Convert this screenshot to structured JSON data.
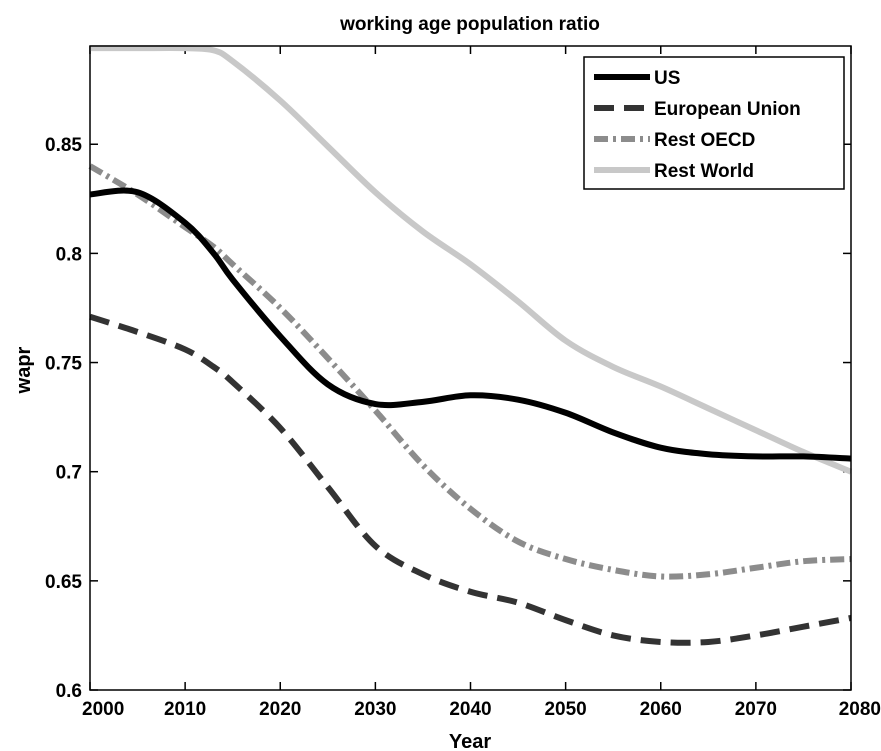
{
  "chart_data": {
    "type": "line",
    "title": "working age population ratio",
    "xlabel": "Year",
    "ylabel": "wapr",
    "xlim": [
      2000,
      2080
    ],
    "ylim": [
      0.6,
      0.895
    ],
    "xticks": [
      2000,
      2010,
      2020,
      2030,
      2040,
      2050,
      2060,
      2070,
      2080
    ],
    "yticks": [
      0.6,
      0.65,
      0.7,
      0.75,
      0.8,
      0.85
    ],
    "ytick_labels": [
      "0.6",
      "0.65",
      "0.7",
      "0.75",
      "0.8",
      "0.85"
    ],
    "grid": false,
    "legend_position": "top-right",
    "x": [
      2000,
      2005,
      2010,
      2013,
      2015,
      2020,
      2025,
      2030,
      2035,
      2040,
      2045,
      2050,
      2055,
      2060,
      2065,
      2070,
      2075,
      2080
    ],
    "series": [
      {
        "name": "US",
        "color": "#000000",
        "dash": "solid",
        "values": [
          0.827,
          0.828,
          0.814,
          0.8,
          0.788,
          0.762,
          0.74,
          0.731,
          0.732,
          0.735,
          0.733,
          0.727,
          0.718,
          0.711,
          0.708,
          0.707,
          0.707,
          0.706
        ]
      },
      {
        "name": "European Union",
        "color": "#333333",
        "dash": "dashed",
        "values": [
          0.771,
          0.764,
          0.756,
          0.748,
          0.741,
          0.72,
          0.693,
          0.666,
          0.653,
          0.645,
          0.64,
          0.632,
          0.625,
          0.622,
          0.622,
          0.625,
          0.629,
          0.633
        ]
      },
      {
        "name": "Rest OECD",
        "color": "#8c8c8c",
        "dash": "dashdot",
        "values": [
          0.84,
          0.827,
          0.812,
          0.803,
          0.795,
          0.775,
          0.752,
          0.728,
          0.703,
          0.683,
          0.668,
          0.66,
          0.655,
          0.652,
          0.653,
          0.656,
          0.659,
          0.66
        ]
      },
      {
        "name": "Rest World",
        "color": "#c8c8c8",
        "dash": "solid",
        "values": [
          0.894,
          0.894,
          0.894,
          0.893,
          0.888,
          0.87,
          0.849,
          0.828,
          0.81,
          0.795,
          0.778,
          0.76,
          0.748,
          0.739,
          0.729,
          0.719,
          0.709,
          0.7
        ]
      }
    ]
  }
}
